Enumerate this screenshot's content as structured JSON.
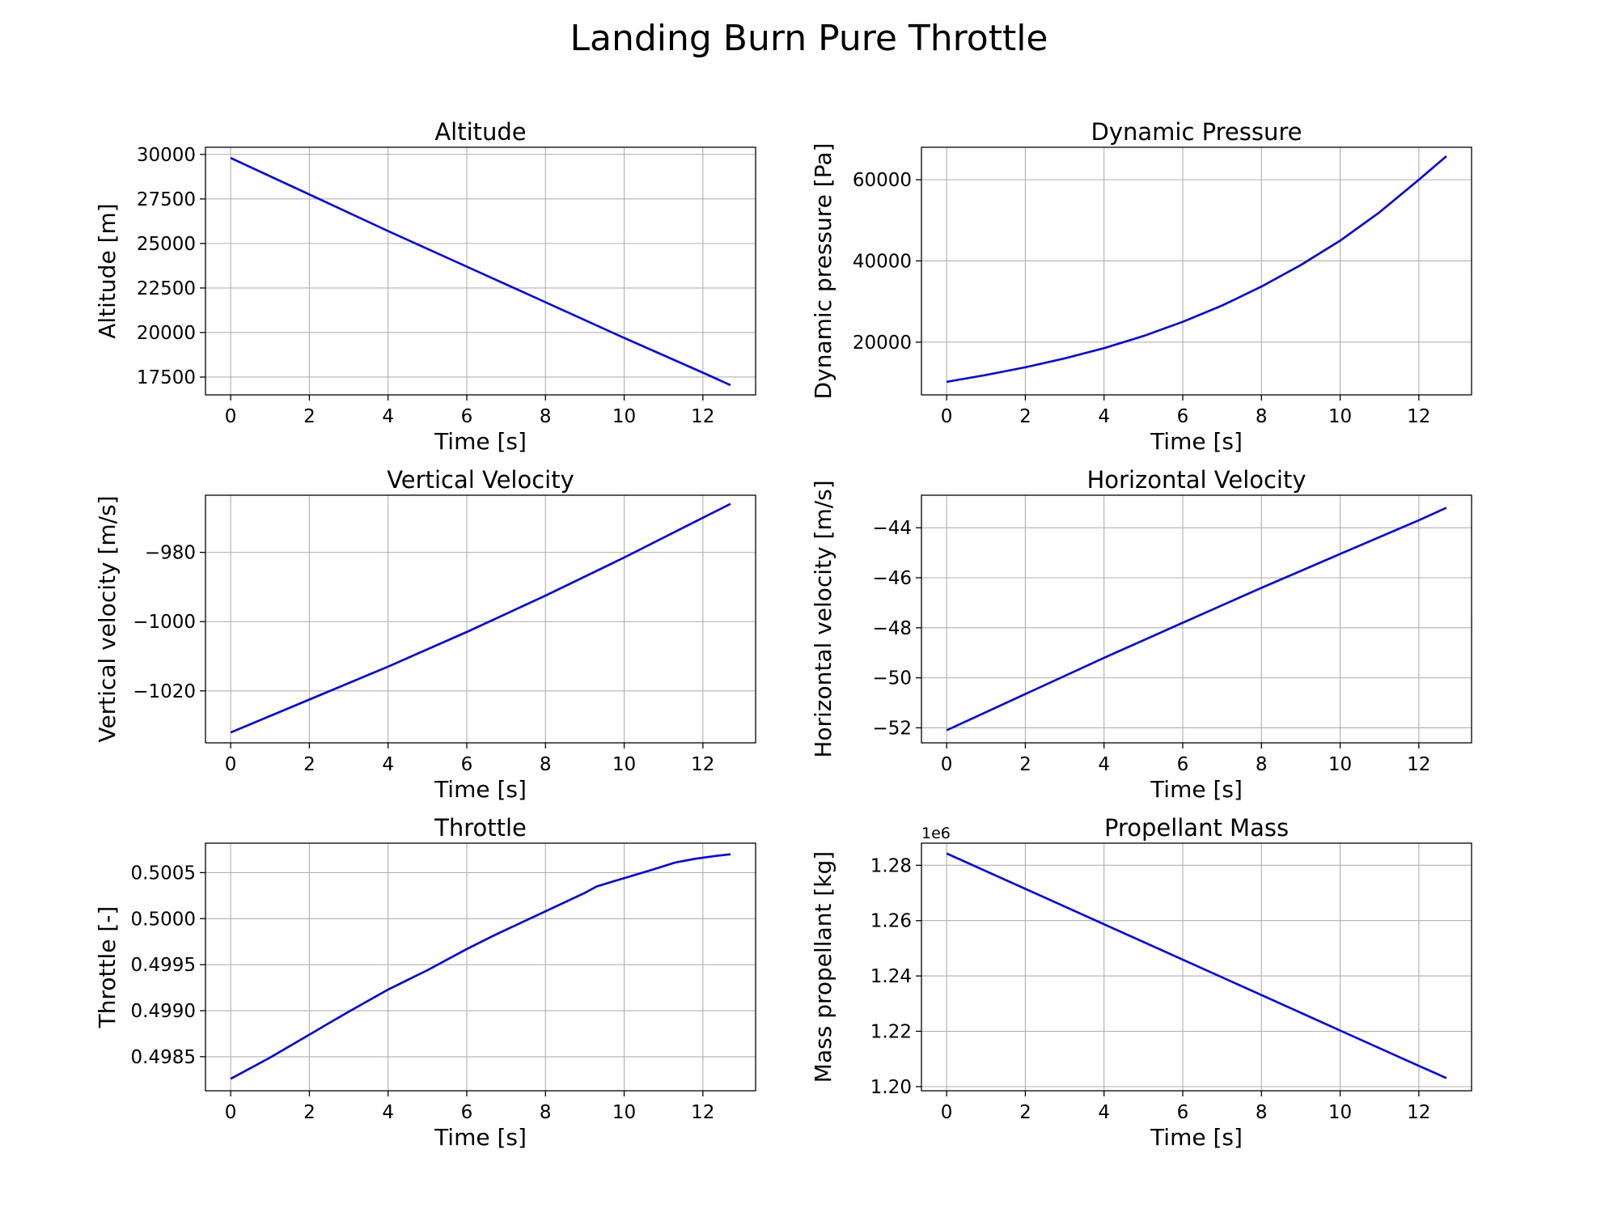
{
  "figure": {
    "title": "Landing Burn Pure Throttle",
    "line_color": "#0000ff"
  },
  "chart_data": [
    {
      "type": "line",
      "title": "Altitude",
      "xlabel": "Time [s]",
      "ylabel": "Altitude [m]",
      "xlim": [
        -0.64,
        13.34
      ],
      "ylim": [
        16500,
        30400
      ],
      "xticks": [
        0,
        2,
        4,
        6,
        8,
        10,
        12
      ],
      "yticks": [
        17500,
        20000,
        22500,
        25000,
        27500,
        30000
      ],
      "ytick_labels": [
        "17500",
        "20000",
        "22500",
        "25000",
        "27500",
        "30000"
      ],
      "grid": true,
      "series": [
        {
          "x": [
            0,
            2,
            4,
            6,
            8,
            10,
            12,
            12.7
          ],
          "y": [
            29800,
            27750,
            25700,
            23700,
            21700,
            19700,
            17750,
            17050
          ]
        }
      ]
    },
    {
      "type": "line",
      "title": "Dynamic Pressure",
      "xlabel": "Time [s]",
      "ylabel": "Dynamic pressure [Pa]",
      "xlim": [
        -0.64,
        13.34
      ],
      "ylim": [
        7000,
        68000
      ],
      "xticks": [
        0,
        2,
        4,
        6,
        8,
        10,
        12
      ],
      "yticks": [
        20000,
        40000,
        60000
      ],
      "ytick_labels": [
        "20000",
        "40000",
        "60000"
      ],
      "grid": true,
      "series": [
        {
          "x": [
            0,
            1,
            2,
            3,
            4,
            5,
            6,
            7,
            8,
            9,
            10,
            11,
            12,
            12.7
          ],
          "y": [
            10200,
            11900,
            13800,
            16000,
            18500,
            21500,
            25000,
            29000,
            33700,
            39000,
            45000,
            52000,
            60000,
            65800
          ]
        }
      ]
    },
    {
      "type": "line",
      "title": "Vertical Velocity",
      "xlabel": "Time [s]",
      "ylabel": "Vertical velocity [m/s]",
      "xlim": [
        -0.64,
        13.34
      ],
      "ylim": [
        -1035,
        -963.5
      ],
      "xticks": [
        0,
        2,
        4,
        6,
        8,
        10,
        12
      ],
      "yticks": [
        -1020,
        -1000,
        -980
      ],
      "ytick_labels": [
        "−1020",
        "−1000",
        "−980"
      ],
      "grid": true,
      "series": [
        {
          "x": [
            0,
            2,
            4,
            6,
            8,
            10,
            12,
            12.7
          ],
          "y": [
            -1032,
            -1022.5,
            -1013,
            -1003,
            -992.5,
            -981.5,
            -970,
            -966
          ]
        }
      ]
    },
    {
      "type": "line",
      "title": "Horizontal Velocity",
      "xlabel": "Time [s]",
      "ylabel": "Horizontal velocity [m/s]",
      "xlim": [
        -0.64,
        13.34
      ],
      "ylim": [
        -52.6,
        -42.7
      ],
      "xticks": [
        0,
        2,
        4,
        6,
        8,
        10,
        12
      ],
      "yticks": [
        -52,
        -50,
        -48,
        -46,
        -44
      ],
      "ytick_labels": [
        "−52",
        "−50",
        "−48",
        "−46",
        "−44"
      ],
      "grid": true,
      "series": [
        {
          "x": [
            0,
            2,
            4,
            6,
            8,
            10,
            12,
            12.7
          ],
          "y": [
            -52.1,
            -50.65,
            -49.2,
            -47.8,
            -46.4,
            -45.05,
            -43.7,
            -43.2
          ]
        }
      ]
    },
    {
      "type": "line",
      "title": "Throttle",
      "xlabel": "Time [s]",
      "ylabel": "Throttle [-]",
      "xlim": [
        -0.64,
        13.34
      ],
      "ylim": [
        0.49813,
        0.50082
      ],
      "xticks": [
        0,
        2,
        4,
        6,
        8,
        10,
        12
      ],
      "yticks": [
        0.4985,
        0.499,
        0.4995,
        0.5,
        0.5005
      ],
      "ytick_labels": [
        "0.4985",
        "0.4990",
        "0.4995",
        "0.5000",
        "0.5005"
      ],
      "grid": true,
      "series": [
        {
          "x": [
            0,
            1,
            2,
            2.6,
            3,
            4,
            5,
            6,
            6.7,
            7,
            8,
            9,
            9.3,
            10,
            10.7,
            11.3,
            11.8,
            12.3,
            12.7
          ],
          "y": [
            0.49826,
            0.49849,
            0.49874,
            0.49889,
            0.49899,
            0.49923,
            0.49944,
            0.49967,
            0.49982,
            0.49988,
            0.50008,
            0.50028,
            0.50035,
            0.50044,
            0.50053,
            0.50061,
            0.50065,
            0.50068,
            0.5007
          ]
        }
      ]
    },
    {
      "type": "line",
      "title": "Propellant Mass",
      "xlabel": "Time [s]",
      "ylabel": "Mass propellant [kg]",
      "offset_label": "1e6",
      "xlim": [
        -0.64,
        13.34
      ],
      "ylim": [
        1.1985,
        1.288
      ],
      "xticks": [
        0,
        2,
        4,
        6,
        8,
        10,
        12
      ],
      "yticks": [
        1.2,
        1.22,
        1.24,
        1.26,
        1.28
      ],
      "ytick_labels": [
        "1.20",
        "1.22",
        "1.24",
        "1.26",
        "1.28"
      ],
      "grid": true,
      "series": [
        {
          "x": [
            0,
            2,
            4,
            6,
            8,
            10,
            12,
            12.7
          ],
          "y": [
            1.2843,
            1.2715,
            1.2587,
            1.2459,
            1.2331,
            1.2203,
            1.2075,
            1.2031
          ]
        }
      ]
    }
  ]
}
